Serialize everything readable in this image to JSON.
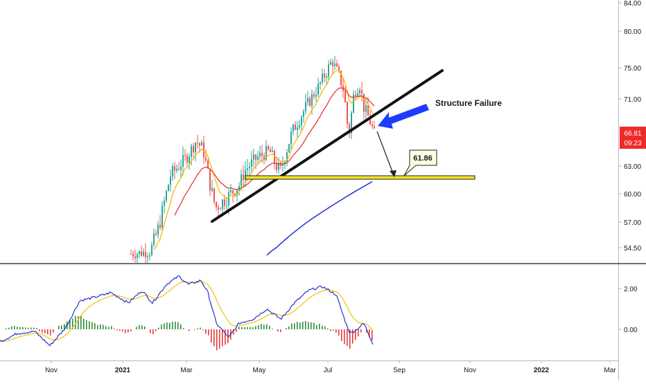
{
  "chart_data": [
    {
      "type": "candlestick",
      "panel": "price",
      "y_axis_ticks": [
        "84.00",
        "80.00",
        "75.00",
        "71.00",
        "63.00",
        "60.00",
        "57.00",
        "54.50"
      ],
      "ylim": [
        53,
        85
      ],
      "x_axis_ticks": [
        "Nov",
        "2021",
        "Mar",
        "May",
        "Jul",
        "Sep",
        "Nov",
        "2022",
        "Mar"
      ],
      "last_price": "66.81",
      "countdown": "09:23",
      "annotations": {
        "structure_failure": "Structure Failure",
        "target_value": "61.86",
        "target_level": 61.86
      },
      "trendline": {
        "from": [
          57.1,
          "2021-03"
        ],
        "to": [
          74.6,
          "2021-08"
        ]
      },
      "colors": {
        "up": "#26a69a",
        "down": "#ef5350",
        "ema_fast": "#f9b807",
        "ema_mid": "#e53935",
        "ema_slow": "#1f2fd6",
        "arrow": "#1e3cff",
        "target_box": "#fffde0",
        "zone": "#f7e225",
        "price_tag": "#ef2a2a"
      }
    },
    {
      "type": "oscillator",
      "panel": "indicator",
      "y_axis_ticks": [
        "2.00",
        "0.00"
      ],
      "colors": {
        "line_fast": "#2233cc",
        "line_slow": "#f5c518",
        "hist_up": "#2e8b3a",
        "hist_down": "#e53935"
      }
    }
  ]
}
